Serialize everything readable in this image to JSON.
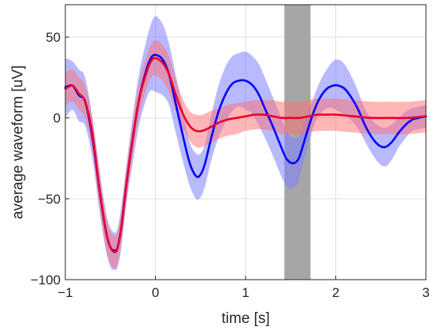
{
  "chart_data": {
    "type": "line",
    "title": "",
    "xlabel": "time [s]",
    "ylabel": "average waveform [uV]",
    "xlim": [
      -1,
      3
    ],
    "ylim": [
      -100,
      70
    ],
    "xticks": [
      -1,
      0,
      1,
      2,
      3
    ],
    "xtick_labels": [
      "−1",
      "0",
      "1",
      "2",
      "3"
    ],
    "yticks": [
      -100,
      -50,
      0,
      50
    ],
    "ytick_labels": [
      "−100",
      "−50",
      "0",
      "50"
    ],
    "grid": true,
    "legend": "none",
    "shaded_region": {
      "x_start": 1.43,
      "x_end": 1.72,
      "color": "#a6a6a6"
    },
    "series": [
      {
        "color": "#0000ff",
        "band_color": "#8080ff",
        "band_opacity": 0.55,
        "x": [
          -1.0,
          -0.92,
          -0.85,
          -0.78,
          -0.7,
          -0.62,
          -0.55,
          -0.5,
          -0.45,
          -0.42,
          -0.38,
          -0.32,
          -0.25,
          -0.18,
          -0.1,
          -0.05,
          0.0,
          0.08,
          0.15,
          0.22,
          0.3,
          0.38,
          0.45,
          0.5,
          0.55,
          0.62,
          0.7,
          0.78,
          0.85,
          0.92,
          1.0,
          1.08,
          1.15,
          1.22,
          1.3,
          1.38,
          1.45,
          1.52,
          1.58,
          1.62,
          1.68,
          1.75,
          1.82,
          1.9,
          1.97,
          2.03,
          2.1,
          2.18,
          2.25,
          2.32,
          2.4,
          2.48,
          2.55,
          2.62,
          2.7,
          2.78,
          2.85,
          2.92,
          3.0
        ],
        "y": [
          19,
          20,
          14,
          10,
          -12,
          -45,
          -70,
          -80,
          -82,
          -80,
          -68,
          -40,
          -12,
          12,
          30,
          37,
          39,
          36,
          27,
          10,
          -10,
          -28,
          -36,
          -35,
          -28,
          -12,
          4,
          15,
          21,
          23,
          23,
          20,
          14,
          5,
          -5,
          -16,
          -25,
          -28,
          -26,
          -20,
          -9,
          3,
          12,
          18,
          20,
          20,
          18,
          12,
          5,
          -4,
          -12,
          -17,
          -18,
          -15,
          -9,
          -4,
          -1,
          0,
          1
        ],
        "upper": [
          37,
          35,
          30,
          25,
          0,
          -32,
          -58,
          -68,
          -71,
          -68,
          -55,
          -28,
          2,
          28,
          48,
          58,
          63,
          58,
          46,
          28,
          6,
          -15,
          -22,
          -22,
          -16,
          2,
          20,
          32,
          38,
          40,
          41,
          38,
          33,
          24,
          13,
          2,
          -8,
          -12,
          -12,
          -8,
          2,
          12,
          22,
          30,
          35,
          36,
          33,
          25,
          16,
          6,
          -1,
          -5,
          -6,
          -4,
          0,
          4,
          6,
          7,
          8
        ],
        "lower": [
          0,
          5,
          -2,
          -5,
          -25,
          -58,
          -82,
          -92,
          -94,
          -92,
          -81,
          -52,
          -27,
          -4,
          12,
          17,
          16,
          14,
          8,
          -8,
          -26,
          -42,
          -50,
          -49,
          -42,
          -26,
          -12,
          -2,
          4,
          7,
          5,
          2,
          -5,
          -13,
          -23,
          -34,
          -42,
          -44,
          -40,
          -32,
          -20,
          -6,
          2,
          6,
          6,
          4,
          2,
          -2,
          -7,
          -14,
          -22,
          -28,
          -30,
          -26,
          -18,
          -12,
          -8,
          -7,
          -6
        ]
      },
      {
        "color": "#e6002e",
        "band_color": "#ff6e6e",
        "band_opacity": 0.5,
        "x": [
          -1.0,
          -0.92,
          -0.85,
          -0.78,
          -0.7,
          -0.62,
          -0.55,
          -0.5,
          -0.45,
          -0.42,
          -0.38,
          -0.32,
          -0.25,
          -0.18,
          -0.1,
          -0.05,
          0.0,
          0.08,
          0.15,
          0.22,
          0.3,
          0.38,
          0.45,
          0.52,
          0.6,
          0.7,
          0.8,
          0.9,
          1.0,
          1.1,
          1.2,
          1.3,
          1.4,
          1.5,
          1.6,
          1.7,
          1.8,
          1.9,
          2.0,
          2.2,
          2.4,
          2.6,
          2.8,
          3.0
        ],
        "y": [
          18,
          20,
          15,
          10,
          -10,
          -45,
          -70,
          -80,
          -83,
          -80,
          -68,
          -40,
          -12,
          12,
          28,
          35,
          37,
          34,
          27,
          15,
          3,
          -5,
          -8,
          -8,
          -6,
          -3,
          -1,
          0,
          1,
          2,
          2,
          1,
          0,
          0,
          0,
          1,
          2,
          2,
          2,
          1,
          0,
          0,
          0,
          1
        ],
        "upper": [
          28,
          30,
          25,
          20,
          0,
          -35,
          -60,
          -70,
          -73,
          -70,
          -58,
          -30,
          -2,
          22,
          38,
          45,
          48,
          45,
          38,
          25,
          12,
          4,
          2,
          2,
          4,
          6,
          8,
          9,
          10,
          11,
          11,
          11,
          10,
          10,
          10,
          11,
          12,
          12,
          12,
          11,
          10,
          10,
          10,
          11
        ],
        "lower": [
          8,
          10,
          5,
          0,
          -20,
          -55,
          -80,
          -90,
          -93,
          -90,
          -78,
          -50,
          -22,
          2,
          18,
          25,
          26,
          23,
          16,
          5,
          -6,
          -14,
          -18,
          -18,
          -16,
          -13,
          -11,
          -10,
          -8,
          -7,
          -7,
          -8,
          -10,
          -10,
          -10,
          -9,
          -8,
          -8,
          -8,
          -9,
          -10,
          -10,
          -10,
          -9
        ]
      }
    ]
  }
}
